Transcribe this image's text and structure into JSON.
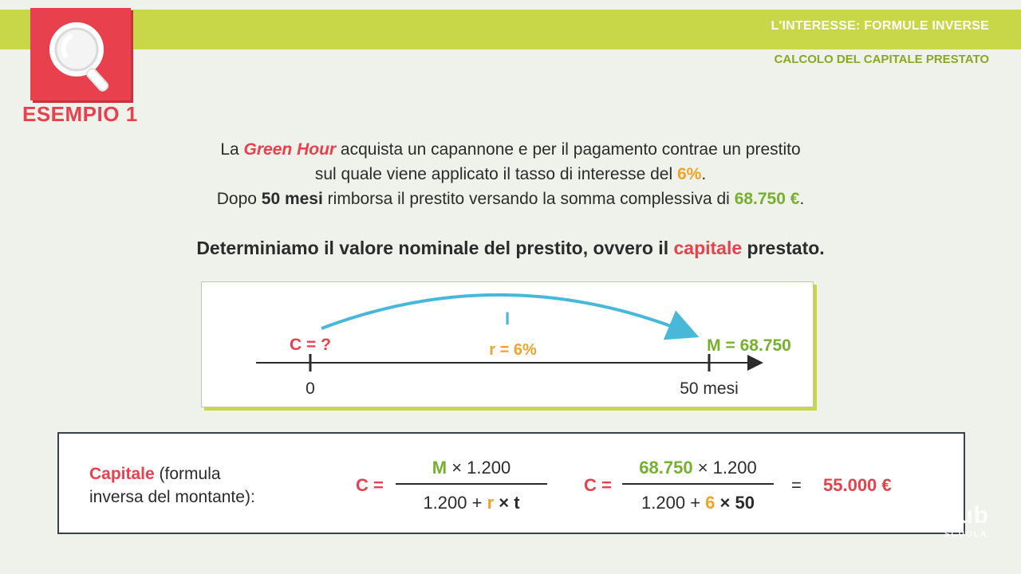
{
  "header": {
    "title": "L'INTERESSE: FORMULE INVERSE",
    "subtitle": "CALCOLO DEL CAPITALE PRESTATO"
  },
  "badge": {
    "icon": "magnifier-icon",
    "label": "ESEMPIO 1"
  },
  "problem": {
    "line1_a": "La ",
    "company": "Green Hour",
    "line1_b": " acquista un capannone e per il pagamento contrae un prestito",
    "line2_a": "sul quale viene applicato il tasso di interesse del ",
    "rate": "6%",
    "line2_b": ".",
    "line3_a": "Dopo ",
    "months": "50 mesi",
    "line3_b": " rimborsa il prestito versando la somma complessiva di ",
    "amount": "68.750 €",
    "line3_c": "."
  },
  "question": {
    "a": "Determiniamo il valore nominale del prestito, ovvero il ",
    "highlight": "capitale",
    "b": " prestato."
  },
  "timeline": {
    "start_label": "C = ?",
    "interest_label": "I",
    "rate_label": "r = 6%",
    "end_label": "M = 68.750",
    "tick_start": "0",
    "tick_end": "50 mesi"
  },
  "formula": {
    "label_highlight": "Capitale",
    "label_rest1": " (formula",
    "label_rest2": "inversa del montante):",
    "c_eq1": "C =",
    "f1_num_var": "M",
    "f1_num_rest": " × 1.200",
    "f1_den_a": "1.200 + ",
    "f1_den_r": "r",
    "f1_den_b": " × t",
    "c_eq2": "C =",
    "f2_num_val": "68.750",
    "f2_num_rest": " × 1.200",
    "f2_den_a": "1.200 + ",
    "f2_den_r": "6",
    "f2_den_b": " × 50",
    "equals": "=",
    "result": "55.000 €"
  },
  "watermark": {
    "brand": "hub",
    "sub": "SCUOLA"
  },
  "colors": {
    "accent_red": "#e8404c",
    "accent_green": "#76b02c",
    "accent_orange": "#f0a22a",
    "accent_blue": "#49b8d8",
    "band": "#c8d748"
  }
}
